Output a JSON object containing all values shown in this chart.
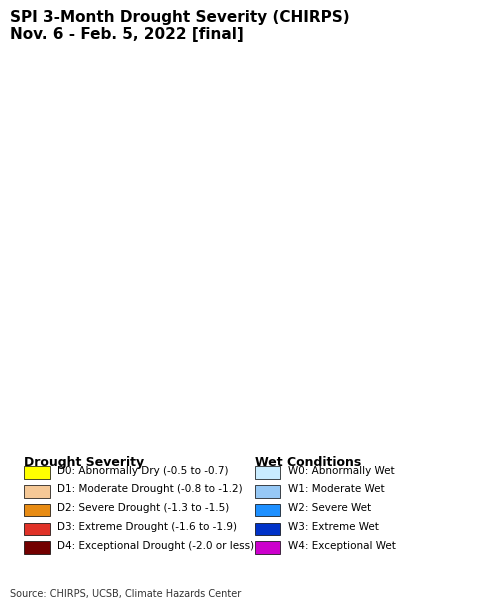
{
  "title_line1": "SPI 3-Month Drought Severity (CHIRPS)",
  "title_line2": "Nov. 6 - Feb. 5, 2022 [final]",
  "source_text": "Source: CHIRPS, UCSB, Climate Hazards Center",
  "background_color": "#ffffff",
  "ocean_color": "#b3e8f0",
  "land_outside_color": "#d9d9d9",
  "legend_drought_title": "Drought Severity",
  "legend_wet_title": "Wet Conditions",
  "drought_categories": [
    {
      "code": "D0",
      "label": "Abnormally Dry (-0.5 to -0.7)",
      "color": "#ffff00"
    },
    {
      "code": "D1",
      "label": "Moderate Drought (-0.8 to -1.2)",
      "color": "#f5c896"
    },
    {
      "code": "D2",
      "label": "Severe Drought (-1.3 to -1.5)",
      "color": "#e88c14"
    },
    {
      "code": "D3",
      "label": "Extreme Drought (-1.6 to -1.9)",
      "color": "#e03228"
    },
    {
      "code": "D4",
      "label": "Exceptional Drought (-2.0 or less)",
      "color": "#730000"
    }
  ],
  "wet_categories": [
    {
      "code": "W0",
      "label": "Abnormally Wet",
      "color": "#c9ecff"
    },
    {
      "code": "W1",
      "label": "Moderate Wet",
      "color": "#96c8f5"
    },
    {
      "code": "W2",
      "label": "Severe Wet",
      "color": "#1e90ff"
    },
    {
      "code": "W3",
      "label": "Extreme Wet",
      "color": "#0032c8"
    },
    {
      "code": "W4",
      "label": "Exceptional Wet",
      "color": "#cc00cc"
    }
  ],
  "title_fontsize": 11,
  "subtitle_fontsize": 9,
  "legend_title_fontsize": 9,
  "legend_text_fontsize": 7.5,
  "source_fontsize": 7
}
